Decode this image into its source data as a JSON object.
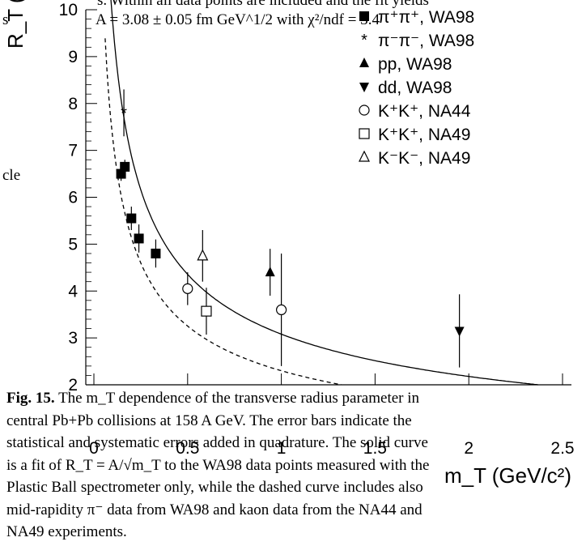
{
  "text_top": {
    "line1_visible": "s. Within all data points are included and the fit yields",
    "line2_visible": "A = 3.08 ± 0.05 fm GeV^1/2 with χ²/ndf = 3.4",
    "margin_left_fragment1": "s",
    "margin_left_fragment2": "cle"
  },
  "chart_data": {
    "type": "scatter",
    "title": "",
    "xlabel": "m_T (GeV/c²)",
    "ylabel": "R_T (fm)",
    "xlim": [
      0,
      2.5
    ],
    "ylim": [
      2,
      10
    ],
    "x_ticks": [
      "0",
      "0.5",
      "1",
      "1.5",
      "2",
      "2.5"
    ],
    "y_ticks": [
      "2",
      "3",
      "4",
      "5",
      "6",
      "7",
      "8",
      "9",
      "10"
    ],
    "series": [
      {
        "name": "π⁺π⁺, WA98",
        "marker": "square-filled",
        "points": [
          {
            "x": 0.145,
            "y": 6.5,
            "err": 0.15
          },
          {
            "x": 0.165,
            "y": 6.65,
            "err": 0.15
          },
          {
            "x": 0.2,
            "y": 5.55,
            "err": 0.25
          },
          {
            "x": 0.24,
            "y": 5.12,
            "err": 0.3
          },
          {
            "x": 0.33,
            "y": 4.8,
            "err": 0.3
          }
        ]
      },
      {
        "name": "π⁻π⁻, WA98",
        "marker": "star",
        "points": [
          {
            "x": 0.16,
            "y": 7.8,
            "err": 0.5
          }
        ]
      },
      {
        "name": "pp, WA98",
        "marker": "triangle-up-filled",
        "points": [
          {
            "x": 0.94,
            "y": 4.4,
            "err": 0.5
          }
        ]
      },
      {
        "name": "dd, WA98",
        "marker": "triangle-down-filled",
        "points": [
          {
            "x": 1.95,
            "y": 3.15,
            "err": 0.78
          }
        ]
      },
      {
        "name": "K⁺K⁺, NA44",
        "marker": "circle-open",
        "points": [
          {
            "x": 0.5,
            "y": 4.05,
            "err": 0.35
          },
          {
            "x": 1.0,
            "y": 3.6,
            "err": 1.2
          }
        ]
      },
      {
        "name": "K⁺K⁺, NA49",
        "marker": "square-open",
        "points": [
          {
            "x": 0.6,
            "y": 3.57,
            "err": 0.5
          }
        ]
      },
      {
        "name": "K⁻K⁻, NA49",
        "marker": "triangle-up-open",
        "points": [
          {
            "x": 0.58,
            "y": 4.75,
            "err": 0.55
          }
        ]
      }
    ],
    "curves": [
      {
        "name": "solid fit",
        "style": "solid",
        "A": 3.08
      },
      {
        "name": "dashed fit",
        "style": "dashed",
        "A": 2.3
      }
    ],
    "legend_position": "top-right"
  },
  "caption": {
    "label": "Fig. 15.",
    "line1": "The m_T dependence of the transverse radius parameter in",
    "line2": "central Pb+Pb collisions at 158 A GeV. The error bars indicate the",
    "line3": "statistical and systematic errors added in quadrature. The solid curve",
    "line4": "is a fit of R_T = A/√m_T to the WA98 data points measured with the",
    "line5": "Plastic Ball spectrometer only, while the dashed curve includes also",
    "line6": "mid-rapidity π⁻ data from WA98 and kaon data from the NA44 and",
    "line7": "NA49 experiments."
  }
}
